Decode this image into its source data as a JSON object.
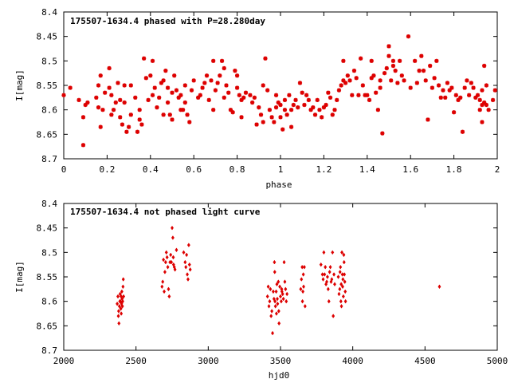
{
  "chart_data": [
    {
      "type": "scatter",
      "title": "175507-1634.4 phased with P=28.280day",
      "xlabel": "phase",
      "ylabel": "I[mag]",
      "xlim": [
        0,
        2
      ],
      "ylim": [
        8.4,
        8.7
      ],
      "y_inverted": true,
      "xticks": [
        "0",
        "0.2",
        "0.4",
        "0.6",
        "0.8",
        "1",
        "1.2",
        "1.4",
        "1.6",
        "1.8",
        "2"
      ],
      "yticks": [
        "8.4",
        "8.45",
        "8.5",
        "8.55",
        "8.6",
        "8.65",
        "8.7"
      ],
      "marker": "star",
      "color": "#dd0000",
      "points": [
        [
          0.0,
          8.57
        ],
        [
          0.03,
          8.555
        ],
        [
          0.07,
          8.58
        ],
        [
          0.09,
          8.615
        ],
        [
          0.09,
          8.672
        ],
        [
          0.1,
          8.59
        ],
        [
          0.11,
          8.585
        ],
        [
          0.15,
          8.575
        ],
        [
          0.16,
          8.55
        ],
        [
          0.16,
          8.595
        ],
        [
          0.17,
          8.635
        ],
        [
          0.17,
          8.53
        ],
        [
          0.18,
          8.6
        ],
        [
          0.19,
          8.565
        ],
        [
          0.21,
          8.515
        ],
        [
          0.21,
          8.555
        ],
        [
          0.22,
          8.57
        ],
        [
          0.22,
          8.61
        ],
        [
          0.23,
          8.6
        ],
        [
          0.24,
          8.585
        ],
        [
          0.25,
          8.545
        ],
        [
          0.26,
          8.58
        ],
        [
          0.26,
          8.615
        ],
        [
          0.27,
          8.63
        ],
        [
          0.28,
          8.585
        ],
        [
          0.28,
          8.55
        ],
        [
          0.29,
          8.645
        ],
        [
          0.3,
          8.635
        ],
        [
          0.31,
          8.55
        ],
        [
          0.31,
          8.61
        ],
        [
          0.33,
          8.575
        ],
        [
          0.34,
          8.645
        ],
        [
          0.35,
          8.62
        ],
        [
          0.35,
          8.6
        ],
        [
          0.36,
          8.63
        ],
        [
          0.37,
          8.495
        ],
        [
          0.38,
          8.535
        ],
        [
          0.39,
          8.58
        ],
        [
          0.4,
          8.53
        ],
        [
          0.41,
          8.5
        ],
        [
          0.41,
          8.57
        ],
        [
          0.42,
          8.555
        ],
        [
          0.43,
          8.595
        ],
        [
          0.44,
          8.575
        ],
        [
          0.45,
          8.545
        ],
        [
          0.46,
          8.54
        ],
        [
          0.46,
          8.61
        ],
        [
          0.47,
          8.52
        ],
        [
          0.48,
          8.555
        ],
        [
          0.48,
          8.585
        ],
        [
          0.49,
          8.61
        ],
        [
          0.5,
          8.62
        ],
        [
          0.5,
          8.565
        ],
        [
          0.51,
          8.53
        ],
        [
          0.52,
          8.56
        ],
        [
          0.53,
          8.575
        ],
        [
          0.54,
          8.6
        ],
        [
          0.54,
          8.57
        ],
        [
          0.55,
          8.6
        ],
        [
          0.56,
          8.585
        ],
        [
          0.56,
          8.55
        ],
        [
          0.57,
          8.61
        ],
        [
          0.58,
          8.625
        ],
        [
          0.59,
          8.56
        ],
        [
          0.6,
          8.54
        ],
        [
          0.62,
          8.575
        ],
        [
          0.63,
          8.57
        ],
        [
          0.64,
          8.555
        ],
        [
          0.65,
          8.545
        ],
        [
          0.66,
          8.53
        ],
        [
          0.67,
          8.58
        ],
        [
          0.68,
          8.54
        ],
        [
          0.69,
          8.6
        ],
        [
          0.69,
          8.5
        ],
        [
          0.7,
          8.56
        ],
        [
          0.71,
          8.545
        ],
        [
          0.72,
          8.53
        ],
        [
          0.73,
          8.5
        ],
        [
          0.74,
          8.515
        ],
        [
          0.74,
          8.575
        ],
        [
          0.75,
          8.55
        ],
        [
          0.76,
          8.565
        ],
        [
          0.77,
          8.6
        ],
        [
          0.78,
          8.605
        ],
        [
          0.79,
          8.52
        ],
        [
          0.8,
          8.555
        ],
        [
          0.8,
          8.53
        ],
        [
          0.81,
          8.57
        ],
        [
          0.82,
          8.58
        ],
        [
          0.82,
          8.615
        ],
        [
          0.83,
          8.575
        ],
        [
          0.84,
          8.565
        ],
        [
          0.86,
          8.57
        ],
        [
          0.87,
          8.585
        ],
        [
          0.88,
          8.575
        ],
        [
          0.89,
          8.63
        ],
        [
          0.9,
          8.595
        ],
        [
          0.91,
          8.61
        ],
        [
          0.92,
          8.625
        ],
        [
          0.92,
          8.55
        ],
        [
          0.93,
          8.495
        ],
        [
          0.94,
          8.56
        ],
        [
          0.95,
          8.6
        ],
        [
          0.96,
          8.615
        ],
        [
          0.97,
          8.625
        ],
        [
          0.98,
          8.595
        ],
        [
          0.98,
          8.57
        ],
        [
          0.99,
          8.585
        ],
        [
          1.0,
          8.59
        ],
        [
          1.0,
          8.615
        ],
        [
          1.01,
          8.64
        ],
        [
          1.02,
          8.6
        ],
        [
          1.02,
          8.58
        ],
        [
          1.03,
          8.61
        ],
        [
          1.04,
          8.57
        ],
        [
          1.05,
          8.6
        ],
        [
          1.05,
          8.635
        ],
        [
          1.06,
          8.59
        ],
        [
          1.07,
          8.58
        ],
        [
          1.08,
          8.595
        ],
        [
          1.09,
          8.545
        ],
        [
          1.1,
          8.565
        ],
        [
          1.11,
          8.59
        ],
        [
          1.12,
          8.57
        ],
        [
          1.13,
          8.58
        ],
        [
          1.14,
          8.6
        ],
        [
          1.15,
          8.595
        ],
        [
          1.16,
          8.61
        ],
        [
          1.17,
          8.58
        ],
        [
          1.18,
          8.6
        ],
        [
          1.19,
          8.615
        ],
        [
          1.2,
          8.595
        ],
        [
          1.21,
          8.59
        ],
        [
          1.22,
          8.565
        ],
        [
          1.23,
          8.575
        ],
        [
          1.24,
          8.61
        ],
        [
          1.25,
          8.6
        ],
        [
          1.26,
          8.58
        ],
        [
          1.27,
          8.56
        ],
        [
          1.28,
          8.55
        ],
        [
          1.29,
          8.5
        ],
        [
          1.29,
          8.54
        ],
        [
          1.3,
          8.545
        ],
        [
          1.31,
          8.53
        ],
        [
          1.32,
          8.54
        ],
        [
          1.33,
          8.57
        ],
        [
          1.34,
          8.52
        ],
        [
          1.35,
          8.535
        ],
        [
          1.36,
          8.57
        ],
        [
          1.37,
          8.495
        ],
        [
          1.38,
          8.55
        ],
        [
          1.39,
          8.57
        ],
        [
          1.4,
          8.57
        ],
        [
          1.41,
          8.58
        ],
        [
          1.42,
          8.5
        ],
        [
          1.42,
          8.535
        ],
        [
          1.43,
          8.53
        ],
        [
          1.44,
          8.565
        ],
        [
          1.45,
          8.6
        ],
        [
          1.46,
          8.54
        ],
        [
          1.46,
          8.555
        ],
        [
          1.47,
          8.648
        ],
        [
          1.48,
          8.525
        ],
        [
          1.49,
          8.515
        ],
        [
          1.5,
          8.47
        ],
        [
          1.5,
          8.49
        ],
        [
          1.51,
          8.54
        ],
        [
          1.52,
          8.51
        ],
        [
          1.52,
          8.5
        ],
        [
          1.53,
          8.52
        ],
        [
          1.54,
          8.545
        ],
        [
          1.55,
          8.5
        ],
        [
          1.56,
          8.53
        ],
        [
          1.57,
          8.54
        ],
        [
          1.59,
          8.45
        ],
        [
          1.6,
          8.555
        ],
        [
          1.62,
          8.5
        ],
        [
          1.63,
          8.545
        ],
        [
          1.64,
          8.52
        ],
        [
          1.65,
          8.49
        ],
        [
          1.66,
          8.52
        ],
        [
          1.67,
          8.54
        ],
        [
          1.68,
          8.62
        ],
        [
          1.69,
          8.51
        ],
        [
          1.7,
          8.555
        ],
        [
          1.71,
          8.535
        ],
        [
          1.72,
          8.5
        ],
        [
          1.73,
          8.55
        ],
        [
          1.74,
          8.575
        ],
        [
          1.75,
          8.56
        ],
        [
          1.76,
          8.575
        ],
        [
          1.77,
          8.545
        ],
        [
          1.78,
          8.56
        ],
        [
          1.79,
          8.555
        ],
        [
          1.8,
          8.605
        ],
        [
          1.81,
          8.57
        ],
        [
          1.82,
          8.58
        ],
        [
          1.83,
          8.575
        ],
        [
          1.84,
          8.645
        ],
        [
          1.85,
          8.555
        ],
        [
          1.86,
          8.54
        ],
        [
          1.87,
          8.57
        ],
        [
          1.88,
          8.545
        ],
        [
          1.89,
          8.555
        ],
        [
          1.9,
          8.575
        ],
        [
          1.91,
          8.57
        ],
        [
          1.92,
          8.58
        ],
        [
          1.92,
          8.6
        ],
        [
          1.93,
          8.56
        ],
        [
          1.93,
          8.59
        ],
        [
          1.93,
          8.625
        ],
        [
          1.94,
          8.51
        ],
        [
          1.94,
          8.585
        ],
        [
          1.95,
          8.55
        ],
        [
          1.95,
          8.59
        ],
        [
          1.96,
          8.6
        ],
        [
          1.98,
          8.58
        ],
        [
          1.99,
          8.56
        ]
      ]
    },
    {
      "type": "scatter",
      "title": "175507-1634.4 not phased light curve",
      "xlabel": "hjd0",
      "ylabel": "I[mag]",
      "xlim": [
        2000,
        5000
      ],
      "ylim": [
        8.4,
        8.7
      ],
      "y_inverted": true,
      "xticks": [
        "2000",
        "2500",
        "3000",
        "3500",
        "4000",
        "4500",
        "5000"
      ],
      "yticks": [
        "8.4",
        "8.45",
        "8.5",
        "8.55",
        "8.6",
        "8.65",
        "8.7"
      ],
      "marker": "diamond",
      "color": "#dd0000",
      "points": [
        [
          2370,
          8.605
        ],
        [
          2375,
          8.59
        ],
        [
          2378,
          8.63
        ],
        [
          2380,
          8.62
        ],
        [
          2382,
          8.645
        ],
        [
          2385,
          8.61
        ],
        [
          2388,
          8.6
        ],
        [
          2390,
          8.585
        ],
        [
          2392,
          8.6
        ],
        [
          2395,
          8.615
        ],
        [
          2397,
          8.59
        ],
        [
          2398,
          8.625
        ],
        [
          2400,
          8.605
        ],
        [
          2402,
          8.58
        ],
        [
          2404,
          8.595
        ],
        [
          2406,
          8.61
        ],
        [
          2408,
          8.6
        ],
        [
          2410,
          8.57
        ],
        [
          2412,
          8.555
        ],
        [
          2414,
          8.59
        ],
        [
          2680,
          8.57
        ],
        [
          2685,
          8.56
        ],
        [
          2690,
          8.515
        ],
        [
          2695,
          8.58
        ],
        [
          2700,
          8.54
        ],
        [
          2705,
          8.52
        ],
        [
          2710,
          8.5
        ],
        [
          2715,
          8.51
        ],
        [
          2720,
          8.53
        ],
        [
          2725,
          8.575
        ],
        [
          2730,
          8.59
        ],
        [
          2735,
          8.52
        ],
        [
          2740,
          8.505
        ],
        [
          2745,
          8.52
        ],
        [
          2750,
          8.45
        ],
        [
          2755,
          8.47
        ],
        [
          2758,
          8.51
        ],
        [
          2760,
          8.525
        ],
        [
          2765,
          8.53
        ],
        [
          2770,
          8.535
        ],
        [
          2780,
          8.495
        ],
        [
          2830,
          8.5
        ],
        [
          2840,
          8.52
        ],
        [
          2845,
          8.53
        ],
        [
          2850,
          8.505
        ],
        [
          2855,
          8.545
        ],
        [
          2860,
          8.555
        ],
        [
          2865,
          8.485
        ],
        [
          2870,
          8.525
        ],
        [
          2875,
          8.535
        ],
        [
          3410,
          8.59
        ],
        [
          3415,
          8.57
        ],
        [
          3420,
          8.61
        ],
        [
          3425,
          8.6
        ],
        [
          3430,
          8.575
        ],
        [
          3435,
          8.63
        ],
        [
          3440,
          8.62
        ],
        [
          3445,
          8.665
        ],
        [
          3450,
          8.58
        ],
        [
          3455,
          8.595
        ],
        [
          3458,
          8.52
        ],
        [
          3460,
          8.54
        ],
        [
          3462,
          8.6
        ],
        [
          3465,
          8.61
        ],
        [
          3470,
          8.58
        ],
        [
          3472,
          8.625
        ],
        [
          3475,
          8.565
        ],
        [
          3478,
          8.595
        ],
        [
          3480,
          8.605
        ],
        [
          3485,
          8.56
        ],
        [
          3488,
          8.62
        ],
        [
          3490,
          8.645
        ],
        [
          3495,
          8.57
        ],
        [
          3500,
          8.59
        ],
        [
          3505,
          8.6
        ],
        [
          3508,
          8.575
        ],
        [
          3510,
          8.58
        ],
        [
          3515,
          8.585
        ],
        [
          3520,
          8.595
        ],
        [
          3525,
          8.52
        ],
        [
          3530,
          8.56
        ],
        [
          3535,
          8.575
        ],
        [
          3540,
          8.6
        ],
        [
          3545,
          8.585
        ],
        [
          3640,
          8.575
        ],
        [
          3645,
          8.555
        ],
        [
          3650,
          8.53
        ],
        [
          3652,
          8.6
        ],
        [
          3655,
          8.58
        ],
        [
          3658,
          8.545
        ],
        [
          3660,
          8.57
        ],
        [
          3665,
          8.53
        ],
        [
          3670,
          8.61
        ],
        [
          3780,
          8.525
        ],
        [
          3790,
          8.545
        ],
        [
          3795,
          8.555
        ],
        [
          3800,
          8.5
        ],
        [
          3805,
          8.545
        ],
        [
          3810,
          8.53
        ],
        [
          3815,
          8.565
        ],
        [
          3820,
          8.56
        ],
        [
          3825,
          8.55
        ],
        [
          3830,
          8.575
        ],
        [
          3835,
          8.6
        ],
        [
          3840,
          8.54
        ],
        [
          3845,
          8.53
        ],
        [
          3850,
          8.56
        ],
        [
          3855,
          8.555
        ],
        [
          3860,
          8.5
        ],
        [
          3865,
          8.63
        ],
        [
          3870,
          8.545
        ],
        [
          3875,
          8.565
        ],
        [
          3900,
          8.55
        ],
        [
          3905,
          8.585
        ],
        [
          3910,
          8.575
        ],
        [
          3912,
          8.54
        ],
        [
          3915,
          8.53
        ],
        [
          3918,
          8.6
        ],
        [
          3920,
          8.565
        ],
        [
          3922,
          8.61
        ],
        [
          3925,
          8.5
        ],
        [
          3928,
          8.545
        ],
        [
          3930,
          8.57
        ],
        [
          3932,
          8.555
        ],
        [
          3935,
          8.59
        ],
        [
          3938,
          8.505
        ],
        [
          3940,
          8.52
        ],
        [
          3942,
          8.545
        ],
        [
          3945,
          8.56
        ],
        [
          3948,
          8.58
        ],
        [
          3950,
          8.6
        ],
        [
          4600,
          8.57
        ]
      ]
    }
  ]
}
